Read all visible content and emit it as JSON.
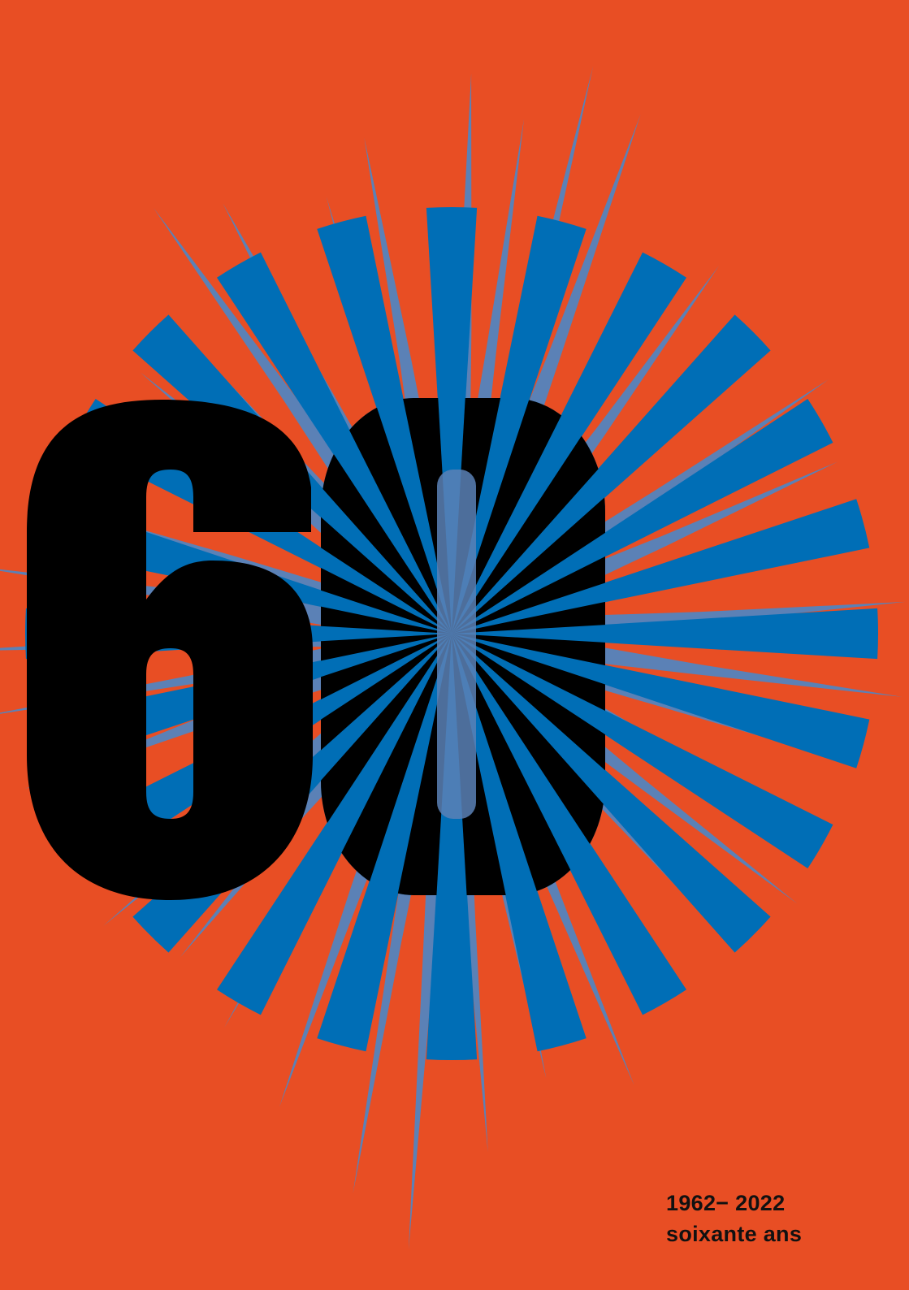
{
  "poster": {
    "numeral": "60",
    "years": "1962− 2022",
    "subtitle": "soixante ans"
  },
  "colors": {
    "background": "#E84E24",
    "ray_primary": "#006EB6",
    "ray_secondary": "#5B81B6",
    "numeral": "#000000",
    "caption": "#111111"
  }
}
